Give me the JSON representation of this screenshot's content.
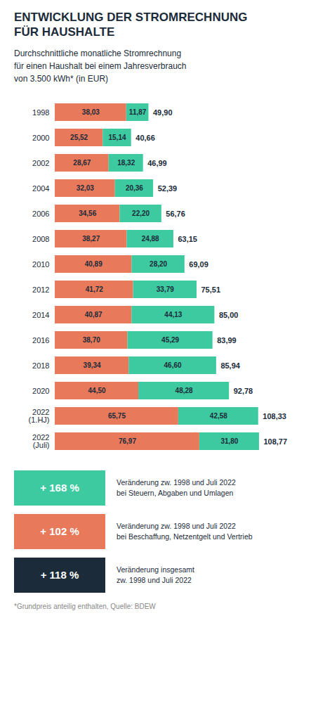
{
  "chart_data": {
    "type": "bar",
    "orientation": "horizontal",
    "stacked": true,
    "data_labels": true,
    "tick_labels": "y",
    "grid": false,
    "title": "ENTWICKLUNG DER STROMRECHNUNG\nFÜR HAUSHALTE",
    "subtitle": "Durchschnittliche monatliche Stromrechnung\nfür einen Haushalt bei einem Jahresverbrauch\nvon 3.500 kWh* (in EUR)",
    "footnote": "*Grundpreis anteilig enthalten, Quelle: BDEW",
    "categories": [
      "1998",
      "2000",
      "2002",
      "2004",
      "2006",
      "2008",
      "2010",
      "2012",
      "2014",
      "2016",
      "2018",
      "2020",
      "2022\n(1.HJ)",
      "2022\n(Juli)"
    ],
    "xlim": [
      0,
      120
    ],
    "series": [
      {
        "name": "Veränderung zw. 1998 und Juli 2022\nbei Beschaffung, Netzentgelt und Vertrieb",
        "color": "#E8795A",
        "values": [
          38.03,
          25.52,
          28.67,
          32.03,
          34.56,
          38.27,
          40.89,
          41.72,
          40.87,
          38.7,
          39.34,
          44.5,
          65.75,
          76.97
        ],
        "value_labels": [
          "38,03",
          "25,52",
          "28,67",
          "32,03",
          "34,56",
          "38,27",
          "40,89",
          "41,72",
          "40,87",
          "38,70",
          "39,34",
          "44,50",
          "65,75",
          "76,97"
        ],
        "change": {
          "value": 102,
          "label": "+ 102 %"
        }
      },
      {
        "name": "Veränderung zw. 1998 und Juli 2022\nbei Steuern, Abgaben und Umlagen",
        "color": "#3ECAA0",
        "values": [
          11.87,
          15.14,
          18.32,
          20.36,
          22.2,
          24.88,
          28.2,
          33.79,
          44.13,
          45.29,
          46.6,
          48.28,
          42.58,
          31.8
        ],
        "value_labels": [
          "11,87",
          "15,14",
          "18,32",
          "20,36",
          "22,20",
          "24,88",
          "28,20",
          "33,79",
          "44,13",
          "45,29",
          "46,60",
          "48,28",
          "42,58",
          "31,80"
        ],
        "change": {
          "value": 168,
          "label": "+ 168 %"
        }
      }
    ],
    "totals": {
      "name": "Veränderung insgesamt\nzw. 1998 und Juli 2022",
      "color": "#1C2B3A",
      "values": [
        49.9,
        40.66,
        46.99,
        52.39,
        56.76,
        63.15,
        69.09,
        75.51,
        85.0,
        83.99,
        85.94,
        92.78,
        108.33,
        108.77
      ],
      "value_labels": [
        "49,90",
        "40,66",
        "46,99",
        "52,39",
        "56,76",
        "63,15",
        "69,09",
        "75,51",
        "85,00",
        "83,99",
        "85,94",
        "92,78",
        "108,33",
        "108,77"
      ],
      "change": {
        "value": 118,
        "label": "+ 118 %"
      }
    }
  }
}
